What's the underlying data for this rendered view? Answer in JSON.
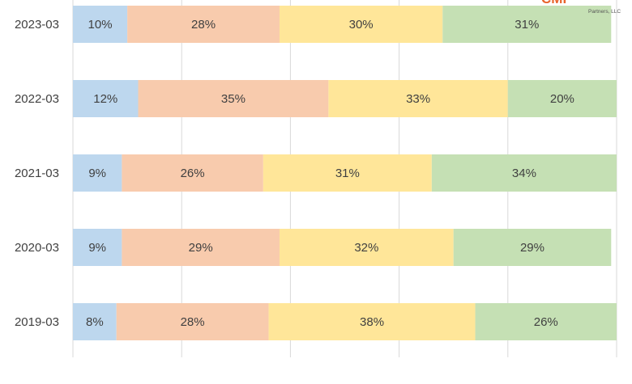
{
  "logo": {
    "partial_text": "CMI",
    "sub_text": "Partners, LLC",
    "color": "#e8632b"
  },
  "chart_data": {
    "type": "bar",
    "orientation": "horizontal",
    "stacked": true,
    "normalized": true,
    "categories": [
      "2023-03",
      "2022-03",
      "2021-03",
      "2020-03",
      "2019-03"
    ],
    "series": [
      {
        "color": "#bdd7ee",
        "values": [
          10,
          12,
          9,
          9,
          8
        ]
      },
      {
        "color": "#f8cbad",
        "values": [
          28,
          35,
          26,
          29,
          28
        ]
      },
      {
        "color": "#ffe699",
        "values": [
          30,
          33,
          31,
          32,
          38
        ]
      },
      {
        "color": "#c5e0b4",
        "values": [
          31,
          20,
          34,
          29,
          26
        ]
      }
    ],
    "data_labels": [
      [
        "10%",
        "28%",
        "30%",
        "31%"
      ],
      [
        "12%",
        "35%",
        "33%",
        "20%"
      ],
      [
        "9%",
        "26%",
        "31%",
        "34%"
      ],
      [
        "9%",
        "29%",
        "32%",
        "29%"
      ],
      [
        "8%",
        "28%",
        "38%",
        "26%"
      ]
    ],
    "xlim": [
      0,
      100
    ],
    "grid": true,
    "legend": "none"
  }
}
